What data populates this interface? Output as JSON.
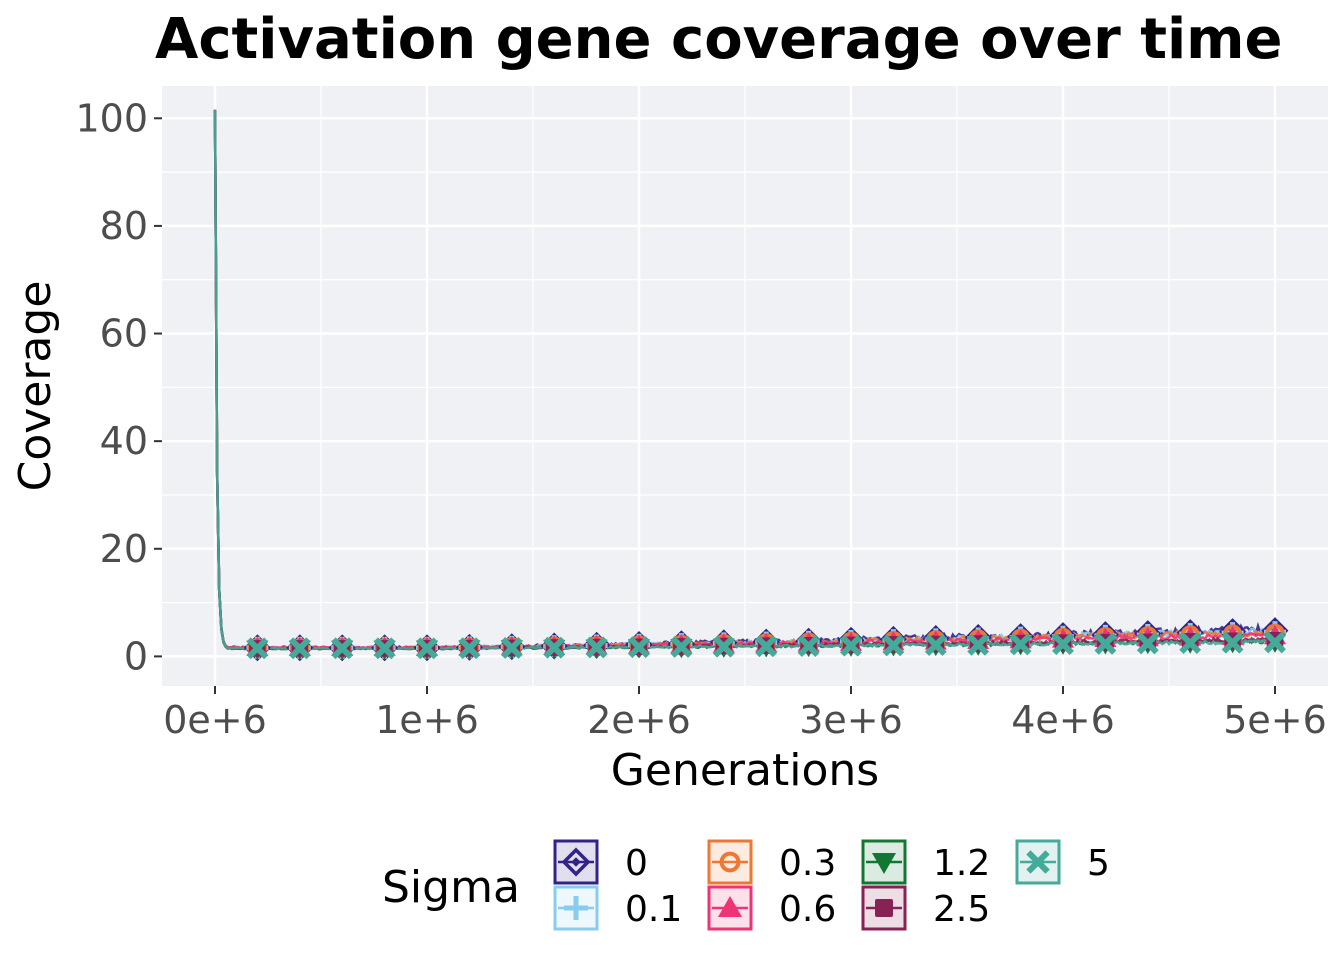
{
  "chart_data": {
    "type": "line",
    "title": "Activation gene coverage over time",
    "xlabel": "Generations",
    "ylabel": "Coverage",
    "xlim": [
      -250000,
      5250000
    ],
    "ylim": [
      -5.5,
      106
    ],
    "x_ticks": [
      0,
      1000000,
      2000000,
      3000000,
      4000000,
      5000000
    ],
    "x_tick_labels": [
      "0e+6",
      "1e+6",
      "2e+6",
      "3e+6",
      "4e+6",
      "5e+6"
    ],
    "y_ticks": [
      0,
      20,
      40,
      60,
      80,
      100
    ],
    "y_tick_labels": [
      "0",
      "20",
      "40",
      "60",
      "80",
      "100"
    ],
    "grid": true,
    "panel_background": "#f0f1f5",
    "legend": {
      "title": "Sigma",
      "position": "bottom"
    },
    "series": [
      {
        "name": "0",
        "color": "#332288",
        "marker": "diamond",
        "start": 100,
        "base": 1.6,
        "end": 4.8,
        "noise": 1.2
      },
      {
        "name": "0.1",
        "color": "#88ccee",
        "marker": "plus",
        "start": 100,
        "base": 1.6,
        "end": 4.5,
        "noise": 1.0
      },
      {
        "name": "0.3",
        "color": "#ee7733",
        "marker": "circle",
        "start": 100,
        "base": 1.6,
        "end": 4.3,
        "noise": 1.0
      },
      {
        "name": "0.6",
        "color": "#ee3377",
        "marker": "triangle-up",
        "start": 100,
        "base": 1.6,
        "end": 3.8,
        "noise": 0.8
      },
      {
        "name": "1.2",
        "color": "#117733",
        "marker": "triangle-down",
        "start": 100,
        "base": 1.4,
        "end": 2.7,
        "noise": 0.6
      },
      {
        "name": "2.5",
        "color": "#882255",
        "marker": "square",
        "start": 100,
        "base": 1.5,
        "end": 3.0,
        "noise": 0.6
      },
      {
        "name": "5",
        "color": "#44aa99",
        "marker": "x",
        "start": 100,
        "base": 1.5,
        "end": 2.6,
        "noise": 0.5
      }
    ]
  }
}
